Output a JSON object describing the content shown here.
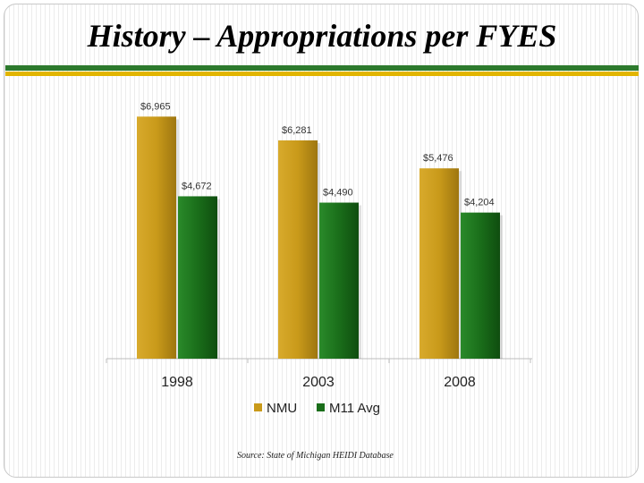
{
  "slide": {
    "title": "History – Appropriations per FYES",
    "source": "Source:  State of Michigan HEIDI Database"
  },
  "colors": {
    "band_green": "#2d7a2d",
    "band_gold": "#e2b500",
    "nmu": "#c99a1a",
    "m11": "#1a6e1a"
  },
  "chart_data": {
    "type": "bar",
    "categories": [
      "1998",
      "2003",
      "2008"
    ],
    "series": [
      {
        "name": "NMU",
        "values": [
          6965,
          6281,
          5476
        ],
        "labels": [
          "$6,965",
          "$6,281",
          "$5,476"
        ],
        "color": "#c99a1a"
      },
      {
        "name": "M11 Avg",
        "values": [
          4672,
          4490,
          4204
        ],
        "labels": [
          "$4,672",
          "$4,490",
          "$4,204"
        ],
        "color": "#1a6e1a"
      }
    ],
    "ylim": [
      0,
      7000
    ],
    "grid": false,
    "legend": "bottom"
  }
}
